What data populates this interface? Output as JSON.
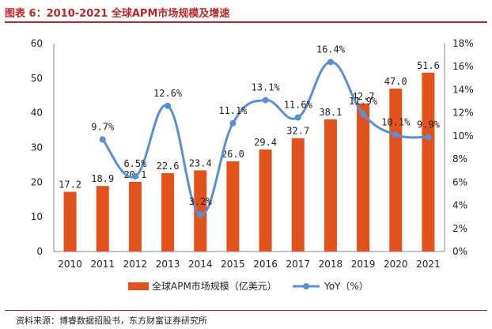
{
  "title": "图表 6：2010-2021 全球APM市场规模及增速",
  "source": "资料来源：博睿数据招股书，东方财富证券研究所",
  "colors": {
    "bar": "#e2521d",
    "line": "#5b8fd3",
    "title": "#b8262b"
  },
  "chart_data": {
    "type": "bar",
    "categories": [
      "2010",
      "2011",
      "2012",
      "2013",
      "2014",
      "2015",
      "2016",
      "2017",
      "2018",
      "2019",
      "2020",
      "2021"
    ],
    "y_left": {
      "ylim": [
        0,
        60
      ],
      "ticks": [
        "0",
        "10",
        "20",
        "30",
        "40",
        "50",
        "60"
      ]
    },
    "y_right": {
      "ylim": [
        0,
        18
      ],
      "ticks": [
        "0%",
        "2%",
        "4%",
        "6%",
        "8%",
        "10%",
        "12%",
        "14%",
        "16%",
        "18%"
      ]
    },
    "series": [
      {
        "name": "全球APM市场规模（亿美元）",
        "type": "bar",
        "axis": "left",
        "values": [
          17.2,
          18.9,
          20.1,
          22.6,
          23.4,
          26.0,
          29.4,
          32.7,
          38.1,
          42.7,
          47.0,
          51.6
        ],
        "labels": [
          "17.2",
          "18.9",
          "20.1",
          "22.6",
          "23.4",
          "26.0",
          "29.4",
          "32.7",
          "38.1",
          "42.7",
          "47.0",
          "51.6"
        ]
      },
      {
        "name": "YoY（%）",
        "type": "line",
        "axis": "right",
        "values": [
          null,
          9.7,
          6.5,
          12.6,
          3.2,
          11.1,
          13.1,
          11.6,
          16.4,
          11.9,
          10.1,
          9.9
        ],
        "labels": [
          null,
          "9.7%",
          "6.5%",
          "12.6%",
          "3.2%",
          "11.1%",
          "13.1%",
          "11.6%",
          "16.4%",
          "11.9%",
          "10.1%",
          "9.9%"
        ]
      }
    ],
    "grid": false,
    "legend": "bottom"
  }
}
